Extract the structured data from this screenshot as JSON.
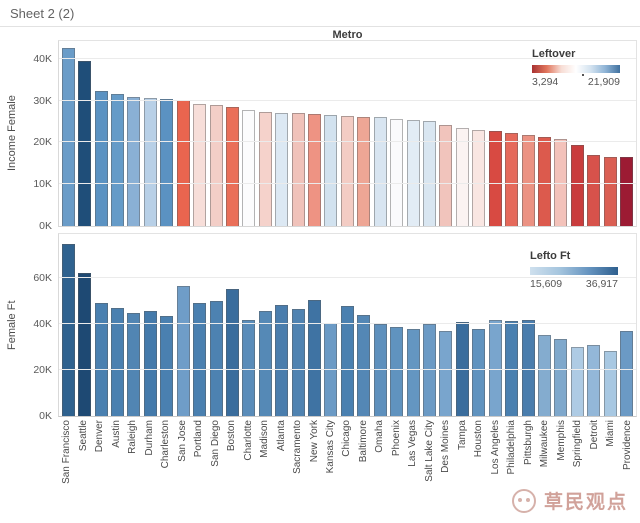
{
  "header": {
    "title": "Sheet 2 (2)",
    "column_header": "Metro"
  },
  "watermark": {
    "text": "草民观点"
  },
  "chart_data": {
    "type": "bar",
    "categories": [
      "San Francisco",
      "Seattle",
      "Denver",
      "Austin",
      "Raleigh",
      "Durham",
      "Charleston",
      "San Jose",
      "Portland",
      "San Diego",
      "Boston",
      "Charlotte",
      "Madison",
      "Atlanta",
      "Sacramento",
      "New York",
      "Kansas City",
      "Chicago",
      "Baltimore",
      "Omaha",
      "Phoenix",
      "Las Vegas",
      "Salt Lake City",
      "Des Moines",
      "Tampa",
      "Houston",
      "Los Angeles",
      "Philadelphia",
      "Pittsburgh",
      "Milwaukee",
      "Memphis",
      "Springfield",
      "Detroit",
      "Miami",
      "Providence"
    ],
    "panels": [
      {
        "ylabel": "Income Female",
        "units": "K",
        "ylim": [
          0,
          44.3
        ],
        "yticks": [
          {
            "v": 0,
            "label": "0K"
          },
          {
            "v": 10,
            "label": "10K"
          },
          {
            "v": 20,
            "label": "20K"
          },
          {
            "v": 30,
            "label": "30K"
          },
          {
            "v": 40,
            "label": "40K"
          }
        ],
        "values_k": [
          42.6,
          39.6,
          32.3,
          31.7,
          30.8,
          30.6,
          30.5,
          30.1,
          29.2,
          29.0,
          28.4,
          27.7,
          27.4,
          27.1,
          27.0,
          26.9,
          26.6,
          26.4,
          26.2,
          26.1,
          25.7,
          25.4,
          25.1,
          24.3,
          23.5,
          23.0,
          22.7,
          22.2,
          21.8,
          21.3,
          20.9,
          19.3,
          16.9,
          16.6,
          16.5
        ],
        "colors": [
          "#6a9cc8",
          "#1f4e79",
          "#5b92c2",
          "#659bc8",
          "#8ab0d5",
          "#b8d0e7",
          "#5b92c2",
          "#e9654f",
          "#f7ded9",
          "#f3cec7",
          "#ea6f59",
          "#fcfcfd",
          "#f5d2cb",
          "#dce8f3",
          "#f0c2ba",
          "#ee9383",
          "#d2e2ef",
          "#f3ccc4",
          "#eea695",
          "#d8e5f1",
          "#fafafc",
          "#e2ecf5",
          "#d9e6f1",
          "#f1c4bc",
          "#fbf3f2",
          "#f9e6e2",
          "#d84a42",
          "#e5695b",
          "#eb9283",
          "#dc5a4d",
          "#f3c2ba",
          "#c93c3d",
          "#d7524b",
          "#da5f53",
          "#9c1b33"
        ],
        "legend": {
          "title": "Leftover",
          "min_label": "3,294",
          "max_label": "21,909",
          "gradient": [
            "#a83232",
            "#e0755c",
            "#f7ddd5",
            "#ffffff",
            "#d4e3f0",
            "#8fb4d6",
            "#41719f"
          ]
        }
      },
      {
        "ylabel": "Female Ft",
        "units": "K",
        "ylim": [
          0,
          79
        ],
        "yticks": [
          {
            "v": 0,
            "label": "0K"
          },
          {
            "v": 20,
            "label": "20K"
          },
          {
            "v": 40,
            "label": "40K"
          },
          {
            "v": 60,
            "label": "60K"
          }
        ],
        "values_k": [
          74.5,
          62.0,
          48.9,
          46.8,
          44.7,
          45.5,
          43.4,
          56.6,
          49.0,
          49.8,
          55.3,
          41.7,
          45.5,
          48.1,
          46.4,
          50.2,
          40.4,
          47.7,
          43.8,
          40.0,
          38.7,
          37.9,
          40.0,
          37.0,
          40.9,
          37.9,
          41.7,
          41.3,
          41.7,
          35.3,
          33.5,
          30.1,
          31.0,
          28.4,
          37.0
        ],
        "colors": [
          "#2f628f",
          "#1e4973",
          "#4a80b0",
          "#4a80b0",
          "#5185b3",
          "#447aab",
          "#4a80b0",
          "#6f9dc8",
          "#4a80b0",
          "#4d82b1",
          "#3a6d9d",
          "#5a8cb9",
          "#5589b6",
          "#4a7dad",
          "#5083b1",
          "#3f73a3",
          "#6b9ac5",
          "#4a80b0",
          "#5487b5",
          "#5e90bd",
          "#6093bf",
          "#6496c1",
          "#6b9ac5",
          "#79a5cd",
          "#3a6d9d",
          "#6093bf",
          "#79a5cd",
          "#4a80b0",
          "#4a7dad",
          "#84accf",
          "#7fa8cc",
          "#aecbe4",
          "#93b7d8",
          "#a8c8e2",
          "#6b9ac5"
        ],
        "legend": {
          "title": "Lefto Ft",
          "min_label": "15,609",
          "max_label": "36,917",
          "gradient": [
            "#cfe0ee",
            "#a5c5de",
            "#6694c0",
            "#2e5f8e"
          ]
        }
      }
    ]
  }
}
